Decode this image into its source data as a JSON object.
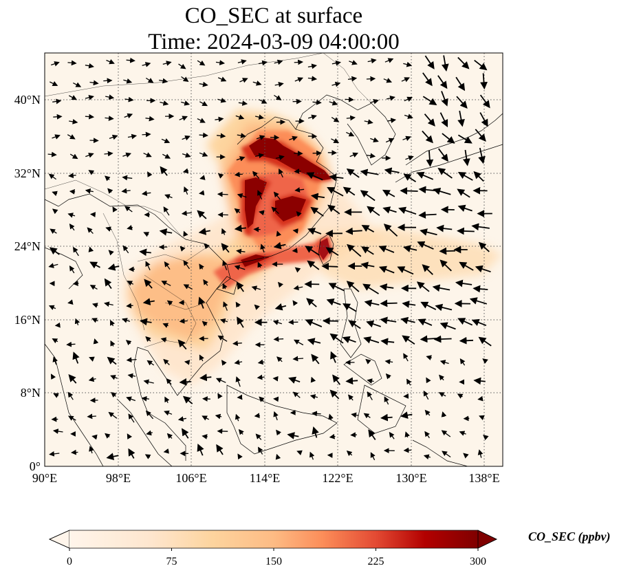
{
  "title": {
    "line1": "CO_SEC at surface",
    "line2": "Time: 2024-03-09 04:00:00"
  },
  "map": {
    "lon_range": [
      90,
      140
    ],
    "lat_range": [
      0,
      44
    ],
    "lon_ticks": [
      90,
      98,
      106,
      114,
      122,
      130,
      138
    ],
    "lat_ticks": [
      0,
      8,
      16,
      24,
      32,
      40
    ],
    "lon_tick_labels": [
      "90°E",
      "98°E",
      "106°E",
      "114°E",
      "122°E",
      "130°E",
      "138°E"
    ],
    "lat_tick_labels": [
      "0°",
      "8°N",
      "16°N",
      "24°N",
      "32°N",
      "40°N"
    ],
    "gridlines": "dotted",
    "wind_vectors": true
  },
  "colorbar": {
    "label": "CO_SEC (ppbv)",
    "min": 0,
    "max": 300,
    "ticks": [
      "0",
      "75",
      "150",
      "225",
      "300"
    ],
    "extend": "both",
    "colormap": [
      "#fff5eb",
      "#fdd49e",
      "#fdbb84",
      "#fc8d59",
      "#ef6548",
      "#d7301f",
      "#990000",
      "#7f0000"
    ]
  }
}
